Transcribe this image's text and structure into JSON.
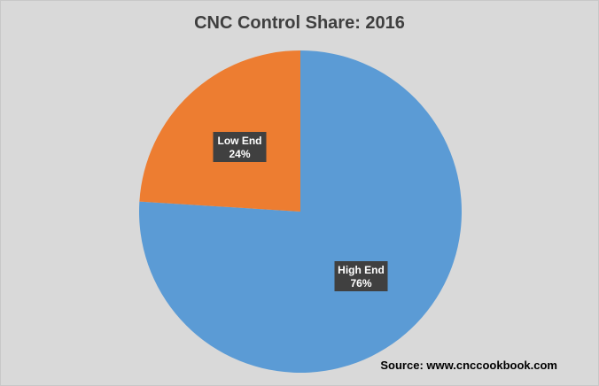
{
  "chart_data": {
    "type": "pie",
    "title": "CNC Control Share: 2016",
    "slices": [
      {
        "name": "High End",
        "value": 76,
        "label": "76%",
        "color": "#5b9bd5"
      },
      {
        "name": "Low End",
        "value": 24,
        "label": "24%",
        "color": "#ed7d31"
      }
    ],
    "start": "12 o'clock, clockwise",
    "legend": "none",
    "source": "Source: www.cnccookbook.com"
  }
}
